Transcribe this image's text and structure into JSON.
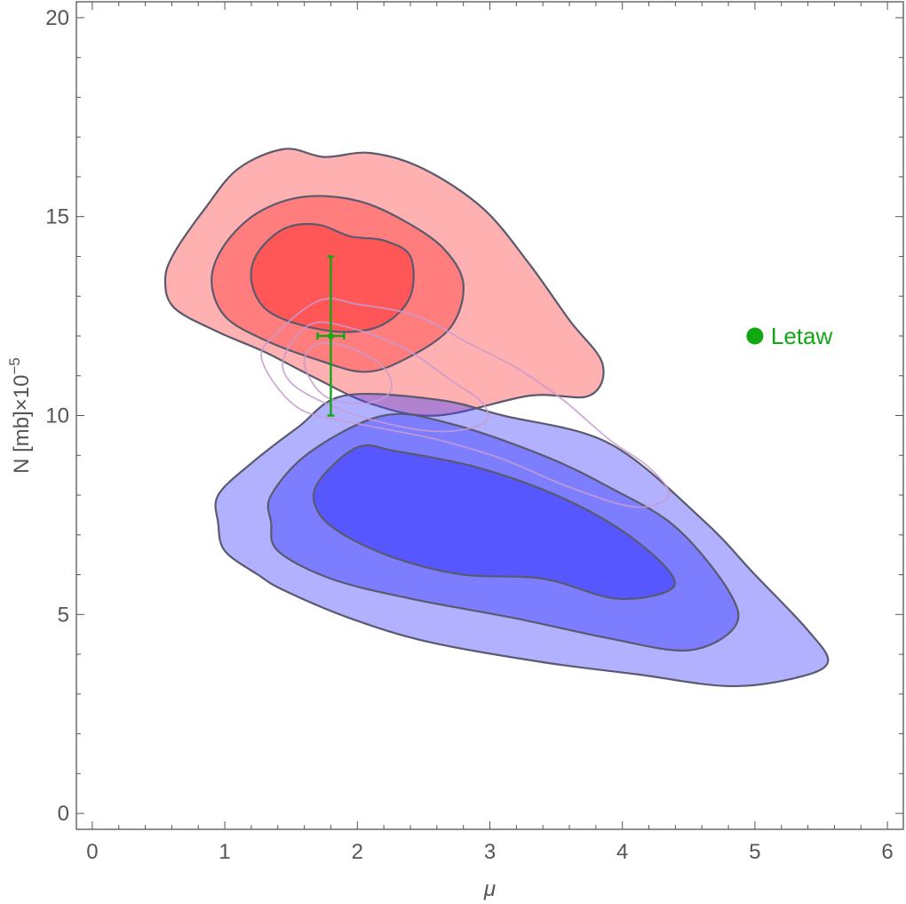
{
  "chart_data": {
    "type": "contour",
    "xlabel": "μ",
    "ylabel": "N [mb]×10",
    "ylabel_exponent": "−5",
    "xlim": [
      -0.12,
      6.12
    ],
    "ylim": [
      -0.4,
      20.4
    ],
    "x_ticks": [
      0,
      1,
      2,
      3,
      4,
      5,
      6
    ],
    "y_ticks": [
      0,
      5,
      10,
      15,
      20
    ],
    "grid": false,
    "colors": {
      "red_fill": "#ff3d3d",
      "blue_fill": "#3d3dff",
      "contour_line": "#5a5a6e",
      "faint_contour": "#c89bd0",
      "marker": "#11a811",
      "frame": "#555555"
    },
    "regions": [
      {
        "color": "red",
        "levels": [
          {
            "opacity": 0.4,
            "points": [
              [
                0.55,
                13.4
              ],
              [
                0.62,
                14.1
              ],
              [
                0.85,
                15.2
              ],
              [
                1.1,
                16.2
              ],
              [
                1.45,
                16.7
              ],
              [
                1.75,
                16.5
              ],
              [
                2.1,
                16.6
              ],
              [
                2.5,
                16.2
              ],
              [
                2.95,
                15.2
              ],
              [
                3.3,
                13.8
              ],
              [
                3.6,
                12.4
              ],
              [
                3.85,
                11.3
              ],
              [
                3.75,
                10.5
              ],
              [
                3.3,
                10.5
              ],
              [
                2.6,
                10.0
              ],
              [
                2.1,
                10.3
              ],
              [
                1.65,
                11.0
              ],
              [
                1.3,
                11.6
              ],
              [
                0.95,
                12.1
              ],
              [
                0.62,
                12.7
              ]
            ]
          },
          {
            "opacity": 0.45,
            "points": [
              [
                0.9,
                13.4
              ],
              [
                1.0,
                14.3
              ],
              [
                1.25,
                15.1
              ],
              [
                1.6,
                15.5
              ],
              [
                2.0,
                15.4
              ],
              [
                2.35,
                14.9
              ],
              [
                2.65,
                14.2
              ],
              [
                2.8,
                13.3
              ],
              [
                2.7,
                12.2
              ],
              [
                2.35,
                11.4
              ],
              [
                2.05,
                11.1
              ],
              [
                1.7,
                11.4
              ],
              [
                1.3,
                11.9
              ],
              [
                1.0,
                12.5
              ]
            ]
          },
          {
            "opacity": 0.6,
            "points": [
              [
                1.2,
                13.4
              ],
              [
                1.25,
                14.1
              ],
              [
                1.45,
                14.7
              ],
              [
                1.7,
                14.8
              ],
              [
                1.95,
                14.5
              ],
              [
                2.2,
                14.4
              ],
              [
                2.4,
                14.0
              ],
              [
                2.4,
                13.0
              ],
              [
                2.2,
                12.3
              ],
              [
                1.9,
                12.1
              ],
              [
                1.55,
                12.3
              ],
              [
                1.3,
                12.7
              ]
            ]
          }
        ]
      },
      {
        "color": "blue",
        "levels": [
          {
            "opacity": 0.4,
            "points": [
              [
                0.95,
                8.0
              ],
              [
                1.2,
                8.8
              ],
              [
                1.55,
                9.7
              ],
              [
                1.9,
                10.5
              ],
              [
                2.6,
                10.4
              ],
              [
                3.1,
                10.0
              ],
              [
                3.9,
                9.3
              ],
              [
                4.6,
                7.4
              ],
              [
                5.0,
                6.0
              ],
              [
                5.4,
                4.6
              ],
              [
                5.55,
                3.8
              ],
              [
                5.3,
                3.4
              ],
              [
                4.8,
                3.2
              ],
              [
                4.1,
                3.5
              ],
              [
                3.4,
                3.8
              ],
              [
                2.55,
                4.3
              ],
              [
                1.95,
                4.9
              ],
              [
                1.45,
                5.6
              ],
              [
                1.25,
                6.0
              ],
              [
                1.0,
                6.6
              ],
              [
                0.95,
                7.3
              ]
            ]
          },
          {
            "opacity": 0.45,
            "points": [
              [
                1.35,
                8.0
              ],
              [
                1.65,
                9.1
              ],
              [
                2.2,
                10.0
              ],
              [
                2.7,
                9.8
              ],
              [
                3.4,
                9.0
              ],
              [
                3.9,
                8.2
              ],
              [
                4.4,
                7.2
              ],
              [
                4.8,
                5.6
              ],
              [
                4.85,
                4.7
              ],
              [
                4.5,
                4.1
              ],
              [
                3.9,
                4.4
              ],
              [
                3.2,
                4.9
              ],
              [
                2.4,
                5.4
              ],
              [
                1.8,
                5.9
              ],
              [
                1.4,
                6.6
              ],
              [
                1.35,
                7.3
              ]
            ]
          },
          {
            "opacity": 0.6,
            "points": [
              [
                1.7,
                8.3
              ],
              [
                2.0,
                9.2
              ],
              [
                2.3,
                9.1
              ],
              [
                2.9,
                8.7
              ],
              [
                3.5,
                8.0
              ],
              [
                4.0,
                7.1
              ],
              [
                4.35,
                6.1
              ],
              [
                4.35,
                5.6
              ],
              [
                3.95,
                5.4
              ],
              [
                3.4,
                5.9
              ],
              [
                2.8,
                6.0
              ],
              [
                2.3,
                6.4
              ],
              [
                1.9,
                7.0
              ],
              [
                1.7,
                7.6
              ]
            ]
          }
        ]
      }
    ],
    "faint_contours": [
      {
        "points": [
          [
            1.28,
            11.4
          ],
          [
            1.4,
            12.1
          ],
          [
            1.72,
            12.9
          ],
          [
            2.0,
            12.8
          ],
          [
            2.45,
            12.5
          ],
          [
            2.85,
            11.8
          ],
          [
            3.2,
            11.2
          ],
          [
            3.55,
            10.4
          ],
          [
            3.9,
            9.4
          ],
          [
            4.2,
            8.7
          ],
          [
            4.35,
            8.0
          ],
          [
            4.1,
            7.7
          ],
          [
            3.6,
            8.2
          ],
          [
            3.1,
            8.9
          ],
          [
            2.6,
            9.4
          ],
          [
            2.0,
            9.8
          ],
          [
            1.55,
            10.2
          ]
        ]
      },
      {
        "points": [
          [
            1.45,
            11.5
          ],
          [
            1.65,
            12.3
          ],
          [
            1.95,
            12.2
          ],
          [
            2.35,
            11.7
          ],
          [
            2.7,
            10.9
          ],
          [
            2.95,
            10.3
          ],
          [
            2.95,
            9.8
          ],
          [
            2.6,
            9.6
          ],
          [
            2.1,
            9.9
          ],
          [
            1.7,
            10.4
          ],
          [
            1.48,
            10.9
          ]
        ]
      },
      {
        "points": [
          [
            1.6,
            11.3
          ],
          [
            1.7,
            11.8
          ],
          [
            1.95,
            11.7
          ],
          [
            2.2,
            11.2
          ],
          [
            2.25,
            10.6
          ],
          [
            2.05,
            10.3
          ],
          [
            1.75,
            10.5
          ]
        ]
      }
    ],
    "data_point": {
      "x": 1.8,
      "y": 12.0,
      "x_err": 0.1,
      "y_err": 2.0,
      "label": ""
    },
    "named_point": {
      "x": 5.0,
      "y": 12.0,
      "label": "Letaw"
    }
  }
}
